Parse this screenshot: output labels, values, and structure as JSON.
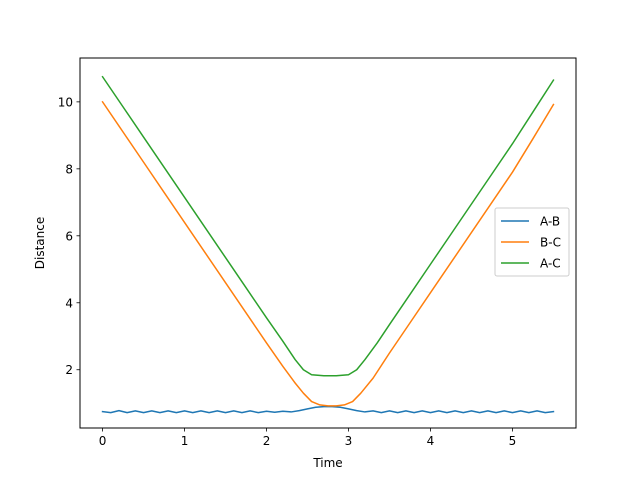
{
  "chart_data": {
    "type": "line",
    "xlabel": "Time",
    "ylabel": "Distance",
    "xlim": [
      -0.275,
      5.775
    ],
    "ylim": [
      0.26,
      11.31
    ],
    "xticks": [
      0,
      1,
      2,
      3,
      4,
      5
    ],
    "yticks": [
      2,
      4,
      6,
      8,
      10
    ],
    "grid": false,
    "legend_position": "center-right",
    "series": [
      {
        "name": "A-B",
        "color": "#1f77b4",
        "x": [
          0,
          0.1,
          0.2,
          0.3,
          0.4,
          0.5,
          0.6,
          0.7,
          0.8,
          0.9,
          1.0,
          1.1,
          1.2,
          1.3,
          1.4,
          1.5,
          1.6,
          1.7,
          1.8,
          1.9,
          2.0,
          2.1,
          2.2,
          2.3,
          2.4,
          2.5,
          2.6,
          2.7,
          2.8,
          2.9,
          3.0,
          3.1,
          3.2,
          3.3,
          3.4,
          3.5,
          3.6,
          3.7,
          3.8,
          3.9,
          4.0,
          4.1,
          4.2,
          4.3,
          4.4,
          4.5,
          4.6,
          4.7,
          4.8,
          4.9,
          5.0,
          5.1,
          5.2,
          5.3,
          5.4,
          5.5
        ],
        "y": [
          0.75,
          0.72,
          0.78,
          0.72,
          0.77,
          0.72,
          0.77,
          0.72,
          0.77,
          0.72,
          0.77,
          0.72,
          0.77,
          0.72,
          0.77,
          0.72,
          0.77,
          0.72,
          0.77,
          0.72,
          0.76,
          0.73,
          0.76,
          0.74,
          0.78,
          0.83,
          0.88,
          0.9,
          0.9,
          0.88,
          0.83,
          0.78,
          0.74,
          0.77,
          0.72,
          0.77,
          0.72,
          0.77,
          0.72,
          0.77,
          0.72,
          0.77,
          0.72,
          0.77,
          0.72,
          0.77,
          0.72,
          0.77,
          0.72,
          0.77,
          0.72,
          0.77,
          0.72,
          0.77,
          0.72,
          0.75
        ]
      },
      {
        "name": "B-C",
        "color": "#ff7f0e",
        "x": [
          0,
          0.25,
          0.5,
          0.75,
          1.0,
          1.25,
          1.5,
          1.75,
          2.0,
          2.2,
          2.35,
          2.45,
          2.55,
          2.65,
          2.75,
          2.85,
          2.95,
          3.05,
          3.15,
          3.3,
          3.5,
          3.75,
          4.0,
          4.25,
          4.5,
          4.75,
          5.0,
          5.25,
          5.5
        ],
        "y": [
          10.0,
          9.1,
          8.2,
          7.3,
          6.4,
          5.5,
          4.6,
          3.7,
          2.8,
          2.1,
          1.6,
          1.3,
          1.05,
          0.95,
          0.92,
          0.92,
          0.95,
          1.05,
          1.3,
          1.75,
          2.5,
          3.4,
          4.3,
          5.2,
          6.1,
          7.0,
          7.9,
          8.9,
          9.92
        ]
      },
      {
        "name": "A-C",
        "color": "#2ca02c",
        "x": [
          0,
          0.25,
          0.5,
          0.75,
          1.0,
          1.25,
          1.5,
          1.75,
          2.0,
          2.2,
          2.35,
          2.45,
          2.55,
          2.7,
          2.85,
          3.0,
          3.1,
          3.2,
          3.35,
          3.5,
          3.75,
          4.0,
          4.25,
          4.5,
          4.75,
          5.0,
          5.25,
          5.5
        ],
        "y": [
          10.75,
          9.85,
          8.95,
          8.05,
          7.15,
          6.25,
          5.35,
          4.45,
          3.55,
          2.85,
          2.3,
          2.0,
          1.85,
          1.82,
          1.82,
          1.85,
          2.0,
          2.3,
          2.8,
          3.35,
          4.25,
          5.15,
          6.05,
          6.95,
          7.85,
          8.75,
          9.7,
          10.65
        ]
      }
    ]
  }
}
